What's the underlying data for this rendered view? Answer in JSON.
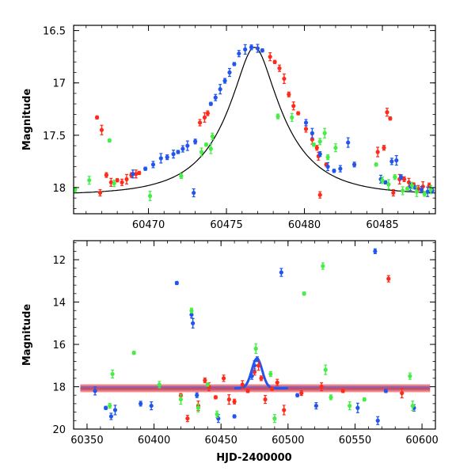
{
  "chart_data": [
    {
      "id": "top",
      "type": "scatter",
      "title": "",
      "xlabel": "",
      "ylabel": "Magnitude",
      "xlim": [
        60465.2,
        60488.4
      ],
      "ylim": [
        18.25,
        16.45
      ],
      "y_inverted": true,
      "grid": false,
      "x_ticks": [
        60470,
        60475,
        60480,
        60485
      ],
      "x_tick_labels": [
        "60470",
        "60475",
        "60480",
        "60485"
      ],
      "y_ticks": [
        16.5,
        17,
        17.5,
        18
      ],
      "y_tick_labels": [
        "16.5",
        "17",
        "17.5",
        "18"
      ],
      "model_curve": {
        "type": "single-lens microlensing fit",
        "baseline_mag": 18.07,
        "peak_mag": 16.66,
        "t0": 60476.8,
        "tE": 3.9
      },
      "series": [
        {
          "color": "#ff2a1a",
          "points": [
            [
              60466.7,
              17.33
            ],
            [
              60466.9,
              18.05
            ],
            [
              60467.0,
              17.45
            ],
            [
              60467.3,
              17.88
            ],
            [
              60467.6,
              17.95
            ],
            [
              60468.0,
              17.93
            ],
            [
              60468.3,
              17.95
            ],
            [
              60468.6,
              17.92
            ],
            [
              60468.9,
              17.88
            ],
            [
              60469.2,
              17.87
            ],
            [
              60469.4,
              17.86
            ],
            [
              60473.3,
              17.38
            ],
            [
              60473.6,
              17.33
            ],
            [
              60473.8,
              17.29
            ],
            [
              60477.8,
              16.75
            ],
            [
              60478.1,
              16.8
            ],
            [
              60478.4,
              16.86
            ],
            [
              60478.7,
              16.96
            ],
            [
              60479.0,
              17.11
            ],
            [
              60479.3,
              17.22
            ],
            [
              60479.6,
              17.29
            ],
            [
              60480.1,
              17.44
            ],
            [
              60480.5,
              17.54
            ],
            [
              60480.8,
              17.62
            ],
            [
              60480.9,
              17.7
            ],
            [
              60481.4,
              17.78
            ],
            [
              60481.0,
              18.07
            ],
            [
              60484.7,
              17.66
            ],
            [
              60485.1,
              17.62
            ],
            [
              60485.3,
              17.28
            ],
            [
              60485.5,
              17.34
            ],
            [
              60485.7,
              18.05
            ],
            [
              60486.1,
              17.92
            ],
            [
              60486.4,
              17.92
            ],
            [
              60486.7,
              17.95
            ],
            [
              60487.0,
              17.97
            ],
            [
              60487.3,
              18.01
            ],
            [
              60487.6,
              17.99
            ],
            [
              60488.0,
              17.98
            ]
          ]
        },
        {
          "color": "#2255ee",
          "points": [
            [
              60469.0,
              17.87
            ],
            [
              60469.8,
              17.82
            ],
            [
              60470.3,
              17.78
            ],
            [
              60470.8,
              17.72
            ],
            [
              60471.2,
              17.71
            ],
            [
              60471.6,
              17.68
            ],
            [
              60471.9,
              17.66
            ],
            [
              60472.2,
              17.63
            ],
            [
              60472.5,
              17.6
            ],
            [
              60473.0,
              17.56
            ],
            [
              60472.9,
              18.05
            ],
            [
              60474.0,
              17.2
            ],
            [
              60474.3,
              17.14
            ],
            [
              60474.6,
              17.06
            ],
            [
              60474.9,
              16.98
            ],
            [
              60475.2,
              16.9
            ],
            [
              60475.5,
              16.82
            ],
            [
              60475.8,
              16.72
            ],
            [
              60476.2,
              16.68
            ],
            [
              60476.6,
              16.66
            ],
            [
              60477.0,
              16.67
            ],
            [
              60477.3,
              16.69
            ],
            [
              60480.1,
              17.38
            ],
            [
              60480.5,
              17.48
            ],
            [
              60481.0,
              17.68
            ],
            [
              60481.5,
              17.8
            ],
            [
              60481.9,
              17.84
            ],
            [
              60482.3,
              17.82
            ],
            [
              60482.8,
              17.57
            ],
            [
              60483.2,
              17.78
            ],
            [
              60484.9,
              17.92
            ],
            [
              60485.2,
              17.95
            ],
            [
              60485.6,
              17.75
            ],
            [
              60485.9,
              17.74
            ],
            [
              60486.2,
              17.9
            ],
            [
              60486.8,
              17.99
            ],
            [
              60487.1,
              18.0
            ],
            [
              60487.5,
              18.02
            ],
            [
              60487.9,
              18.04
            ],
            [
              60488.2,
              18.03
            ]
          ]
        },
        {
          "color": "#44ee44",
          "points": [
            [
              60465.3,
              18.02
            ],
            [
              60466.2,
              17.93
            ],
            [
              60467.5,
              17.55
            ],
            [
              60467.8,
              17.96
            ],
            [
              60470.1,
              18.08
            ],
            [
              60472.1,
              17.89
            ],
            [
              60473.4,
              17.66
            ],
            [
              60473.7,
              17.59
            ],
            [
              60474.1,
              17.51
            ],
            [
              60474.0,
              17.63
            ],
            [
              60478.3,
              17.32
            ],
            [
              60479.2,
              17.33
            ],
            [
              60480.6,
              17.59
            ],
            [
              60481.0,
              17.56
            ],
            [
              60481.3,
              17.48
            ],
            [
              60481.5,
              17.71
            ],
            [
              60482.0,
              17.62
            ],
            [
              60484.6,
              17.78
            ],
            [
              60485.0,
              17.93
            ],
            [
              60485.4,
              17.97
            ],
            [
              60485.8,
              17.9
            ],
            [
              60486.3,
              18.03
            ],
            [
              60486.6,
              18.01
            ],
            [
              60486.9,
              17.98
            ],
            [
              60487.2,
              18.04
            ],
            [
              60487.7,
              18.06
            ],
            [
              60488.1,
              18.02
            ]
          ]
        }
      ]
    },
    {
      "id": "bottom",
      "type": "scatter",
      "title": "",
      "xlabel": "HJD-2400000",
      "ylabel": "Magnitude",
      "xlim": [
        60340,
        60610
      ],
      "ylim": [
        20,
        11.1
      ],
      "y_inverted": true,
      "grid": false,
      "x_ticks": [
        60350,
        60400,
        60450,
        60500,
        60550,
        60600
      ],
      "x_tick_labels": [
        "60350",
        "60400",
        "60450",
        "60500",
        "60550",
        "60600"
      ],
      "y_ticks": [
        12,
        14,
        16,
        18,
        20
      ],
      "y_tick_labels": [
        "12",
        "14",
        "16",
        "18",
        "20"
      ],
      "baseline_mag": 18.07,
      "series": [
        {
          "color": "#ff2a1a",
          "points": [
            [
              60420,
              18.4
            ],
            [
              60425,
              19.5
            ],
            [
              60433,
              18.9
            ],
            [
              60438,
              17.7
            ],
            [
              60441,
              18.0
            ],
            [
              60446,
              18.5
            ],
            [
              60452,
              17.6
            ],
            [
              60456,
              18.6
            ],
            [
              60460,
              18.7
            ],
            [
              60466,
              17.9
            ],
            [
              60470,
              18.2
            ],
            [
              60475,
              17.3
            ],
            [
              60478,
              17.0
            ],
            [
              60480,
              17.6
            ],
            [
              60483,
              18.6
            ],
            [
              60488,
              18.1
            ],
            [
              60492,
              17.8
            ],
            [
              60497,
              19.1
            ],
            [
              60510,
              18.3
            ],
            [
              60525,
              18.0
            ],
            [
              60541,
              18.2
            ],
            [
              60575,
              12.9
            ],
            [
              60585,
              18.3
            ]
          ]
        },
        {
          "color": "#2255ee",
          "points": [
            [
              60356,
              18.2
            ],
            [
              60364,
              19.0
            ],
            [
              60368,
              19.4
            ],
            [
              60371,
              19.1
            ],
            [
              60390,
              18.8
            ],
            [
              60398,
              18.9
            ],
            [
              60417,
              13.1
            ],
            [
              60428,
              14.6
            ],
            [
              60429,
              15.0
            ],
            [
              60432,
              18.4
            ],
            [
              60448,
              19.5
            ],
            [
              60460,
              19.4
            ],
            [
              60473,
              17.5
            ],
            [
              60475,
              17.0
            ],
            [
              60477,
              16.7
            ],
            [
              60495,
              12.6
            ],
            [
              60507,
              18.4
            ],
            [
              60521,
              18.9
            ],
            [
              60552,
              19.0
            ],
            [
              60565,
              11.6
            ],
            [
              60567,
              19.6
            ],
            [
              60573,
              18.2
            ],
            [
              60594,
              19.0
            ]
          ]
        },
        {
          "color": "#44ee44",
          "points": [
            [
              60367,
              18.9
            ],
            [
              60369,
              17.4
            ],
            [
              60385,
              16.4
            ],
            [
              60404,
              17.9
            ],
            [
              60420,
              18.6
            ],
            [
              60428,
              14.4
            ],
            [
              60433,
              19.0
            ],
            [
              60440,
              17.9
            ],
            [
              60447,
              19.3
            ],
            [
              60476,
              16.2
            ],
            [
              60487,
              17.4
            ],
            [
              60490,
              19.5
            ],
            [
              60512,
              13.6
            ],
            [
              60526,
              12.3
            ],
            [
              60528,
              17.2
            ],
            [
              60532,
              18.5
            ],
            [
              60546,
              18.9
            ],
            [
              60557,
              18.6
            ],
            [
              60591,
              17.5
            ],
            [
              60593,
              18.9
            ]
          ]
        }
      ]
    }
  ]
}
